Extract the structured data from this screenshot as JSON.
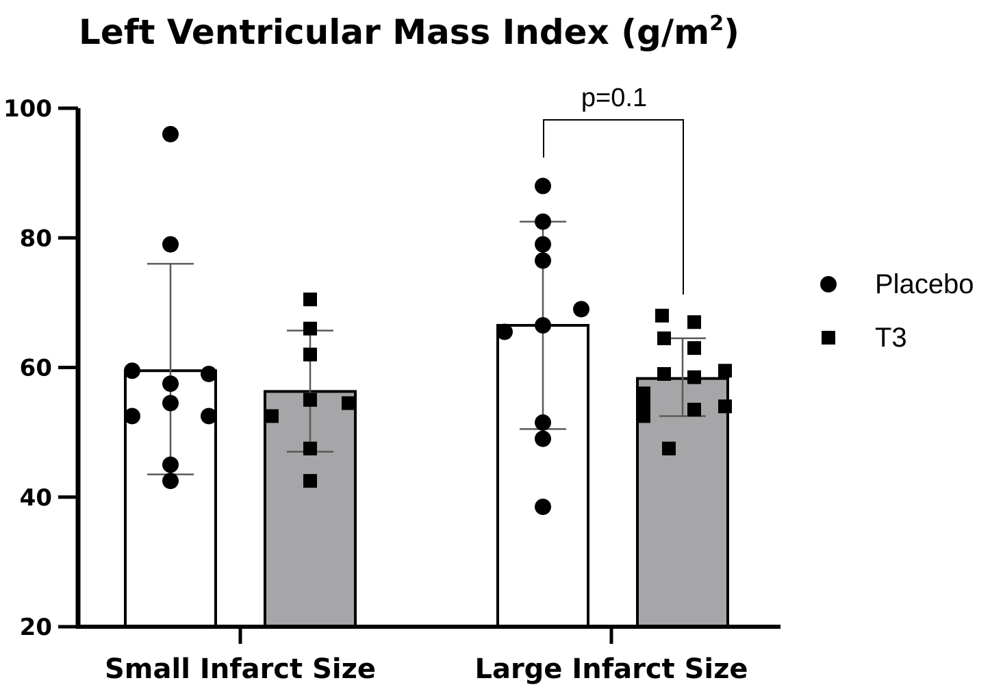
{
  "chart_data": {
    "type": "bar",
    "title": "Left Ventricular Mass Index (g/m",
    "title_superscript": "2",
    "title_suffix": ")",
    "xlabel": "",
    "ylabel": "",
    "ylim": [
      20,
      100
    ],
    "yticks": [
      "20",
      "40",
      "60",
      "80",
      "100"
    ],
    "categories": [
      "Small Infarct Size",
      "Large Infarct Size"
    ],
    "series": [
      {
        "name": "Placebo",
        "marker": "circle",
        "color": "#ffffff",
        "values": [
          59.5,
          66.5
        ],
        "sd_low": [
          43.5,
          50.5
        ],
        "sd_high": [
          76,
          82.5
        ],
        "points": [
          [
            96,
            79,
            59.5,
            59,
            57.5,
            54.5,
            52.5,
            52.5,
            45,
            42.5
          ],
          [
            88,
            82.5,
            79,
            76.5,
            69,
            66.5,
            65.5,
            51.5,
            49,
            38.5
          ]
        ]
      },
      {
        "name": "T3",
        "marker": "square",
        "color": "#a6a6a8",
        "values": [
          56.3,
          58.3
        ],
        "sd_low": [
          47,
          52.5
        ],
        "sd_high": [
          65.7,
          64.5
        ],
        "points": [
          [
            70.5,
            66,
            62,
            55,
            54.5,
            52.5,
            47.5,
            42.5
          ],
          [
            68,
            67,
            64.5,
            63,
            59.5,
            59,
            58.5,
            56,
            54.5,
            54,
            53.5,
            52.5,
            47.5
          ]
        ]
      }
    ],
    "annotations": [
      {
        "text": "p=0.1",
        "between": [
          "Large Infarct Size / Placebo",
          "Large Infarct Size / T3"
        ]
      }
    ],
    "legend": {
      "position": "right"
    },
    "grid": false
  }
}
